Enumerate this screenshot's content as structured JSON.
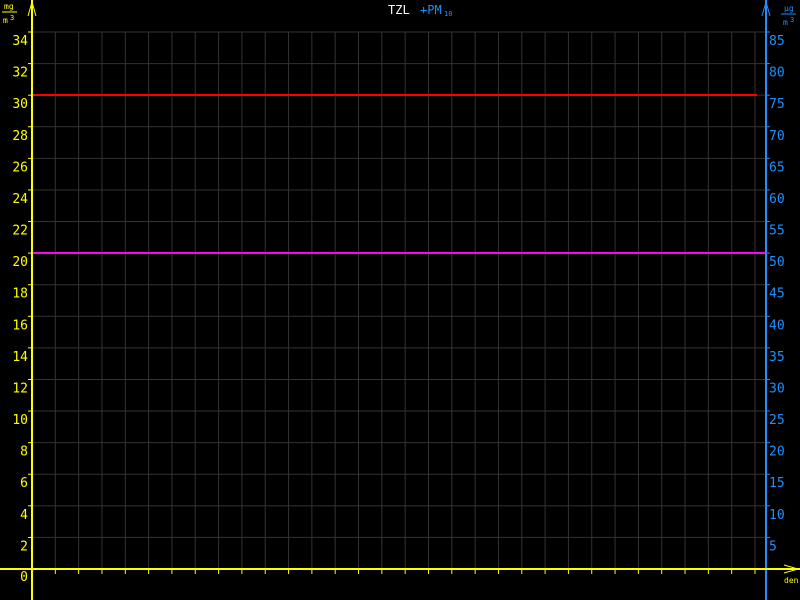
{
  "chart_data": {
    "type": "line",
    "title": {
      "primary": "TZL",
      "secondary": "+PM",
      "secondary_sub": "10"
    },
    "left_axis": {
      "unit_num": "mg",
      "unit_den": "m",
      "unit_exp": "3",
      "ylim": [
        0,
        34
      ],
      "ticks": [
        0,
        2,
        4,
        6,
        8,
        10,
        12,
        14,
        16,
        18,
        20,
        22,
        24,
        26,
        28,
        30,
        32,
        34
      ],
      "color": "#ffff00"
    },
    "right_axis": {
      "unit_num": "µg",
      "unit_den": "m",
      "unit_exp": "3",
      "ylim": [
        0,
        85
      ],
      "ticks": [
        5,
        10,
        15,
        20,
        25,
        30,
        35,
        40,
        45,
        50,
        55,
        60,
        65,
        70,
        75,
        80,
        85
      ],
      "color": "#1e90ff"
    },
    "x_axis": {
      "label": "den",
      "day_count": 31
    },
    "grid": true,
    "reference_lines": [
      {
        "value_left": 30,
        "value_right": 75,
        "color": "#ff0000"
      },
      {
        "value_left": 20,
        "value_right": 50,
        "color": "#ff00ff"
      }
    ],
    "colors": {
      "title_primary": "#ffffff",
      "title_secondary": "#1e90ff",
      "grid": "#333333",
      "background": "#000000"
    }
  }
}
